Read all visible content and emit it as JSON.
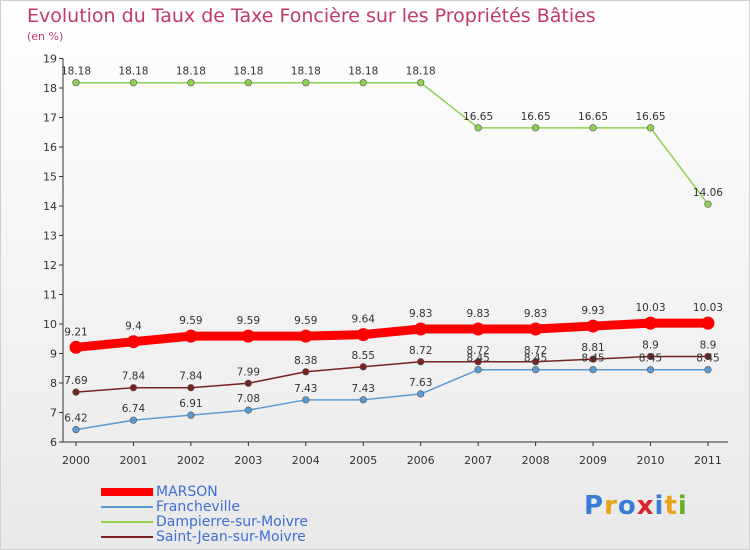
{
  "header": {
    "title": "Evolution du Taux de Taxe Foncière sur les Propriétés Bâties",
    "subtitle": "(en %)"
  },
  "logo": {
    "text": "Proxiti",
    "colors": [
      "#3a7bd5",
      "#e8a317",
      "#3a7bd5",
      "#d9262c",
      "#3a7bd5",
      "#e8a317",
      "#6ab023"
    ]
  },
  "chart_data": {
    "type": "line",
    "title": "Evolution du Taux de Taxe Foncière sur les Propriétés Bâties",
    "ylabel": "(en %)",
    "xlabel": "",
    "x": [
      "2000",
      "2001",
      "2002",
      "2003",
      "2004",
      "2005",
      "2006",
      "2007",
      "2008",
      "2009",
      "2010",
      "2011"
    ],
    "ylim": [
      6,
      19
    ],
    "yticks": [
      "6",
      "7",
      "8",
      "9",
      "10",
      "11",
      "12",
      "13",
      "14",
      "15",
      "16",
      "17",
      "18",
      "19"
    ],
    "grid": false,
    "legend": "bottom-left",
    "series": [
      {
        "name": "MARSON",
        "color": "#ff0000",
        "values": [
          9.21,
          9.4,
          9.59,
          9.59,
          9.59,
          9.64,
          9.83,
          9.83,
          9.83,
          9.93,
          10.03,
          10.03
        ],
        "labels": [
          "9.21",
          "9.4",
          "9.59",
          "9.59",
          "9.59",
          "9.64",
          "9.83",
          "9.83",
          "9.83",
          "9.93",
          "10.03",
          "10.03"
        ]
      },
      {
        "name": "Francheville",
        "color": "#5b9bd5",
        "values": [
          6.42,
          6.74,
          6.91,
          7.08,
          7.43,
          7.43,
          7.63,
          8.45,
          8.45,
          8.45,
          8.45,
          8.45
        ],
        "labels": [
          "6.42",
          "6.74",
          "6.91",
          "7.08",
          "7.43",
          "7.43",
          "7.63",
          "8.45",
          "8.45",
          "8.45",
          "8.45",
          "8.45"
        ]
      },
      {
        "name": "Dampierre-sur-Moivre",
        "color": "#8fd14f",
        "values": [
          18.18,
          18.18,
          18.18,
          18.18,
          18.18,
          18.18,
          18.18,
          16.65,
          16.65,
          16.65,
          16.65,
          14.06
        ],
        "labels": [
          "18.18",
          "18.18",
          "18.18",
          "18.18",
          "18.18",
          "18.18",
          "18.18",
          "16.65",
          "16.65",
          "16.65",
          "16.65",
          "14.06"
        ]
      },
      {
        "name": "Saint-Jean-sur-Moivre",
        "color": "#7a2222",
        "values": [
          7.69,
          7.84,
          7.84,
          7.99,
          8.38,
          8.55,
          8.72,
          8.72,
          8.72,
          8.81,
          8.9,
          8.9
        ],
        "labels": [
          "7.69",
          "7.84",
          "7.84",
          "7.99",
          "8.38",
          "8.55",
          "8.72",
          "8.72",
          "8.72",
          "8.81",
          "8.9",
          "8.9"
        ]
      }
    ]
  }
}
